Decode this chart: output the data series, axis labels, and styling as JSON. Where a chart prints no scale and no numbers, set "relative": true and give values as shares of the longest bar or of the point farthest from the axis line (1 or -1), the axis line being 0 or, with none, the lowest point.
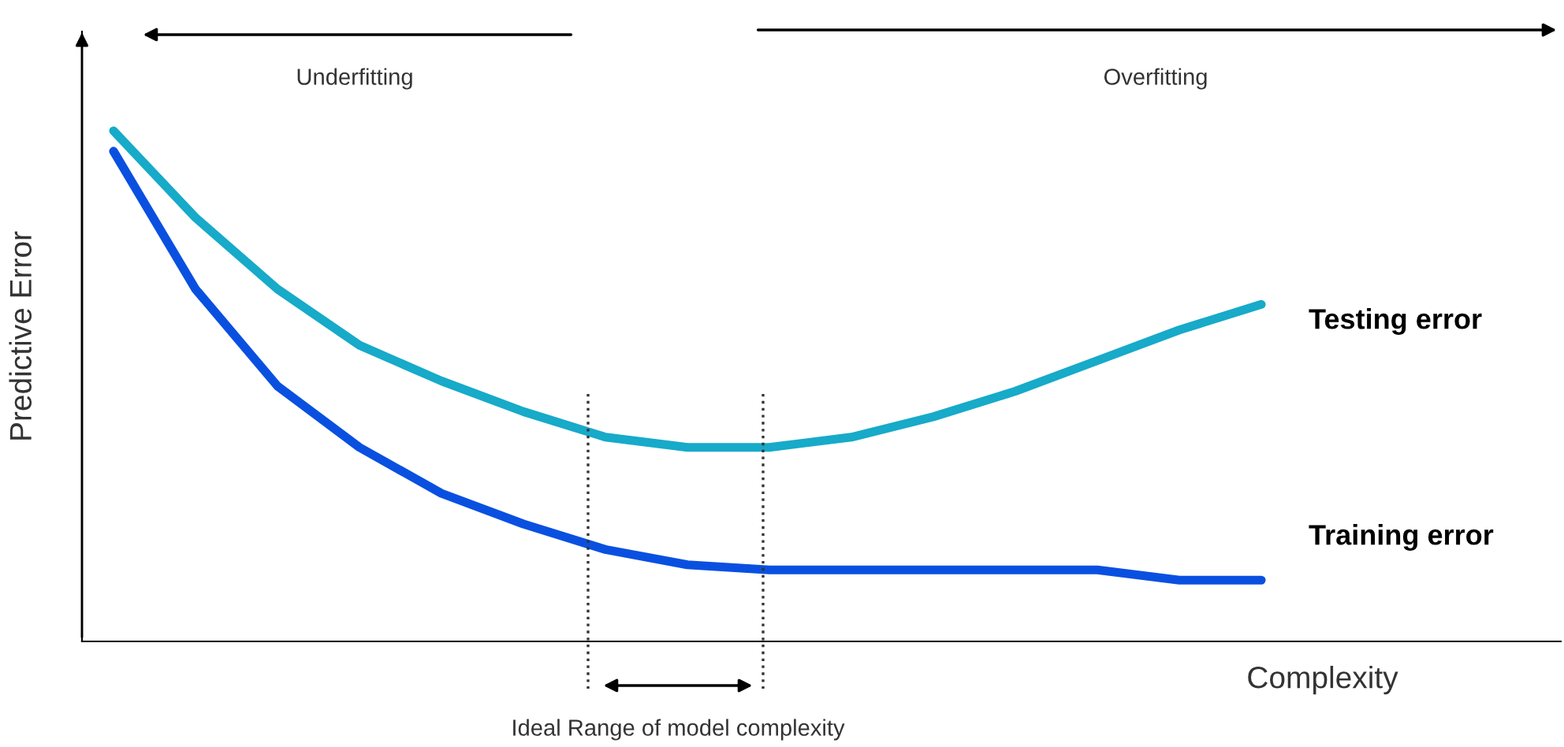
{
  "chart_data": {
    "type": "line",
    "relative": true,
    "xlabel": "Complexity",
    "ylabel": "Predictive Error",
    "categories": [
      null,
      null,
      null,
      null,
      null,
      null,
      null,
      null,
      null,
      null,
      null,
      null,
      null,
      null,
      null
    ],
    "series": [
      {
        "name": "Testing error",
        "color": "#17aac9",
        "values": [
          1.0,
          0.83,
          0.69,
          0.58,
          0.51,
          0.45,
          0.4,
          0.38,
          0.38,
          0.4,
          0.44,
          0.49,
          0.55,
          0.61,
          0.66
        ]
      },
      {
        "name": "Training error",
        "color": "#0a50e0",
        "values": [
          0.96,
          0.69,
          0.5,
          0.38,
          0.29,
          0.23,
          0.18,
          0.15,
          0.14,
          0.14,
          0.14,
          0.14,
          0.14,
          0.12,
          0.12
        ]
      }
    ],
    "annotations": [
      "Underfitting",
      "Overfitting",
      "Ideal Range of model complexity"
    ],
    "legend": false,
    "marker": "none",
    "line_style": "solid",
    "tick_labels": false
  }
}
